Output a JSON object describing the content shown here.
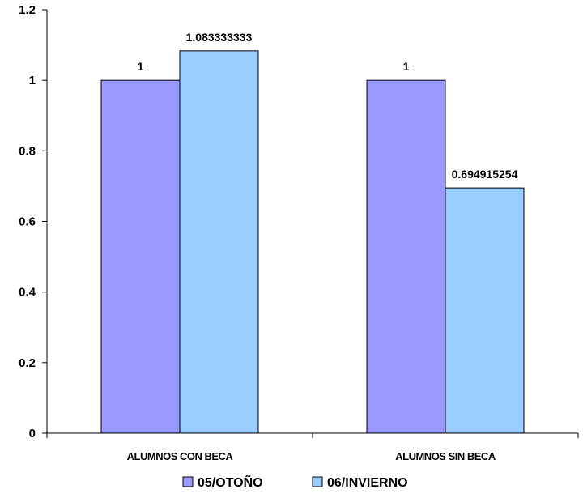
{
  "chart_data": {
    "type": "bar",
    "categories": [
      "ALUMNOS CON BECA",
      "ALUMNOS SIN BECA"
    ],
    "series": [
      {
        "name": "05/OTOÑO",
        "values": [
          1,
          1
        ],
        "labels": [
          "1",
          "1"
        ],
        "color": "#9999ff"
      },
      {
        "name": "06/INVIERNO",
        "values": [
          1.083333333,
          0.694915254
        ],
        "labels": [
          "1.083333333",
          "0.694915254"
        ],
        "color": "#99ccff"
      }
    ],
    "ylim": [
      0,
      1.2
    ],
    "yticks": [
      "0",
      "0.2",
      "0.4",
      "0.6",
      "0.8",
      "1",
      "1.2"
    ],
    "title": "",
    "xlabel": "",
    "ylabel": "",
    "grid": false,
    "legend_position": "bottom"
  }
}
